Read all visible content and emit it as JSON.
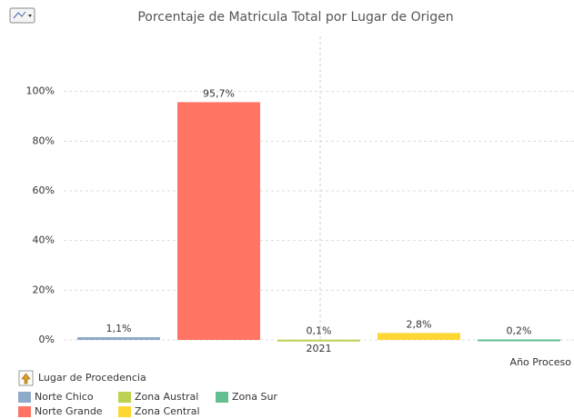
{
  "chart_data": {
    "type": "bar",
    "title": "Porcentaje de Matricula Total por Lugar de Origen",
    "x_label": "Año Proceso",
    "legend_title": "Lugar de Procedencia",
    "categories": [
      "2021"
    ],
    "series": [
      {
        "name": "Norte Chico",
        "color": "#8fa9c9",
        "values": [
          1.1
        ],
        "value_labels": [
          "1,1%"
        ]
      },
      {
        "name": "Norte Grande",
        "color": "#ff7462",
        "values": [
          95.7
        ],
        "value_labels": [
          "95,7%"
        ]
      },
      {
        "name": "Zona Austral",
        "color": "#bdd150",
        "values": [
          0.1
        ],
        "value_labels": [
          "0,1%"
        ]
      },
      {
        "name": "Zona Central",
        "color": "#ffd735",
        "values": [
          2.8
        ],
        "value_labels": [
          "2,8%"
        ]
      },
      {
        "name": "Zona Sur",
        "color": "#62bf91",
        "values": [
          0.2
        ],
        "value_labels": [
          "0,2%"
        ]
      }
    ],
    "ylim": [
      0,
      120
    ],
    "yticks": [
      {
        "value": 0,
        "label": "0%"
      },
      {
        "value": 20,
        "label": "20%"
      },
      {
        "value": 40,
        "label": "40%"
      },
      {
        "value": 60,
        "label": "60%"
      },
      {
        "value": 80,
        "label": "80%"
      },
      {
        "value": 100,
        "label": "100%"
      }
    ],
    "grid": true
  }
}
